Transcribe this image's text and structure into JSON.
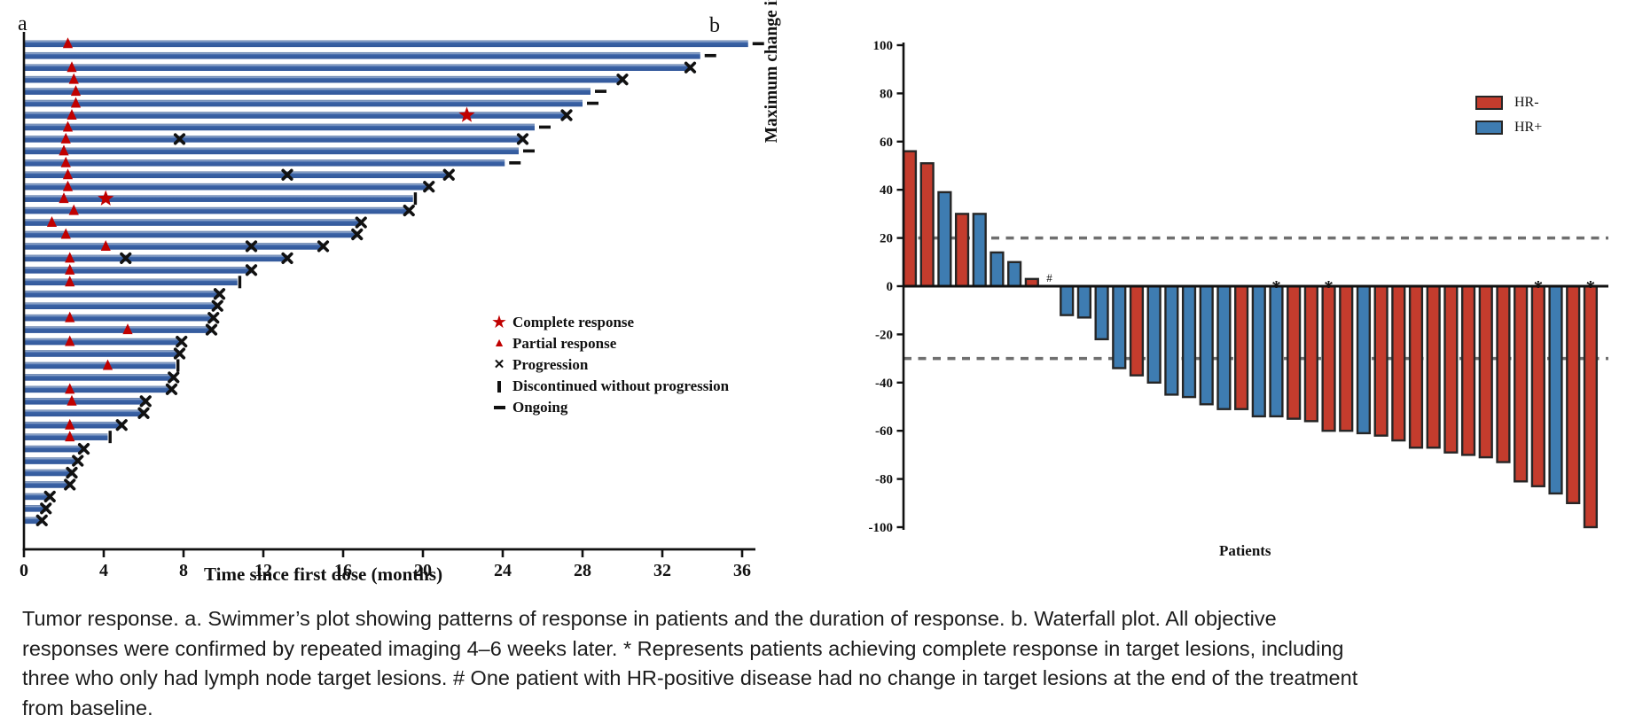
{
  "figure": {
    "panel_a_label": "a",
    "panel_b_label": "b"
  },
  "chart_data": [
    {
      "type": "swimmer",
      "panel": "a",
      "xlabel": "Time since first dose (months)",
      "x_ticks": [
        0,
        4,
        8,
        12,
        16,
        20,
        24,
        28,
        32,
        36
      ],
      "xlim": [
        0,
        37.5
      ],
      "grid": false,
      "legend_position": "center-right",
      "legend": [
        {
          "symbol": "star",
          "label": "Complete response"
        },
        {
          "symbol": "triangle",
          "label": "Partial response"
        },
        {
          "symbol": "x",
          "label": "Progression"
        },
        {
          "symbol": "vbar",
          "label": "Discontinued without progression"
        },
        {
          "symbol": "dash",
          "label": "Ongoing"
        }
      ],
      "bar_color": "#3a62a5",
      "bars": [
        {
          "length": 36.3,
          "partial_response": 2.2,
          "complete_response": null,
          "mid_progression": [],
          "end": "ongoing"
        },
        {
          "length": 33.9,
          "partial_response": null,
          "complete_response": null,
          "mid_progression": [],
          "end": "ongoing"
        },
        {
          "length": 33.4,
          "partial_response": 2.4,
          "complete_response": null,
          "mid_progression": [],
          "end": "progression"
        },
        {
          "length": 30.0,
          "partial_response": 2.5,
          "complete_response": null,
          "mid_progression": [],
          "end": "progression"
        },
        {
          "length": 28.4,
          "partial_response": 2.6,
          "complete_response": null,
          "mid_progression": [],
          "end": "ongoing"
        },
        {
          "length": 28.0,
          "partial_response": 2.6,
          "complete_response": null,
          "mid_progression": [],
          "end": "ongoing"
        },
        {
          "length": 27.2,
          "partial_response": 2.4,
          "complete_response": 22.2,
          "mid_progression": [],
          "end": "progression"
        },
        {
          "length": 25.6,
          "partial_response": 2.2,
          "complete_response": null,
          "mid_progression": [],
          "end": "ongoing"
        },
        {
          "length": 25.0,
          "partial_response": 2.1,
          "complete_response": null,
          "mid_progression": [
            7.8
          ],
          "end": "progression"
        },
        {
          "length": 24.8,
          "partial_response": 2.0,
          "complete_response": null,
          "mid_progression": [],
          "end": "ongoing"
        },
        {
          "length": 24.1,
          "partial_response": 2.1,
          "complete_response": null,
          "mid_progression": [],
          "end": "ongoing"
        },
        {
          "length": 21.3,
          "partial_response": 2.2,
          "complete_response": null,
          "mid_progression": [
            13.2
          ],
          "end": "progression"
        },
        {
          "length": 20.3,
          "partial_response": 2.2,
          "complete_response": null,
          "mid_progression": [],
          "end": "progression"
        },
        {
          "length": 19.5,
          "partial_response": 2.0,
          "complete_response": 4.1,
          "mid_progression": [],
          "end": "discontinued"
        },
        {
          "length": 19.3,
          "partial_response": 2.5,
          "complete_response": null,
          "mid_progression": [],
          "end": "progression"
        },
        {
          "length": 16.9,
          "partial_response": 1.4,
          "complete_response": null,
          "mid_progression": [],
          "end": "progression"
        },
        {
          "length": 16.7,
          "partial_response": 2.1,
          "complete_response": null,
          "mid_progression": [],
          "end": "progression"
        },
        {
          "length": 15.0,
          "partial_response": 4.1,
          "complete_response": null,
          "mid_progression": [
            11.4
          ],
          "end": "progression"
        },
        {
          "length": 13.2,
          "partial_response": 2.3,
          "complete_response": null,
          "mid_progression": [
            5.1
          ],
          "end": "progression"
        },
        {
          "length": 11.4,
          "partial_response": 2.3,
          "complete_response": null,
          "mid_progression": [],
          "end": "progression"
        },
        {
          "length": 10.7,
          "partial_response": 2.3,
          "complete_response": null,
          "mid_progression": [],
          "end": "discontinued"
        },
        {
          "length": 9.8,
          "partial_response": null,
          "complete_response": null,
          "mid_progression": [],
          "end": "progression"
        },
        {
          "length": 9.7,
          "partial_response": null,
          "complete_response": null,
          "mid_progression": [],
          "end": "progression"
        },
        {
          "length": 9.5,
          "partial_response": 2.3,
          "complete_response": null,
          "mid_progression": [],
          "end": "progression"
        },
        {
          "length": 9.4,
          "partial_response": 5.2,
          "complete_response": null,
          "mid_progression": [],
          "end": "progression"
        },
        {
          "length": 7.9,
          "partial_response": 2.3,
          "complete_response": null,
          "mid_progression": [],
          "end": "progression"
        },
        {
          "length": 7.8,
          "partial_response": null,
          "complete_response": null,
          "mid_progression": [],
          "end": "progression"
        },
        {
          "length": 7.6,
          "partial_response": 4.2,
          "complete_response": null,
          "mid_progression": [],
          "end": "discontinued"
        },
        {
          "length": 7.5,
          "partial_response": null,
          "complete_response": null,
          "mid_progression": [],
          "end": "progression"
        },
        {
          "length": 7.4,
          "partial_response": 2.3,
          "complete_response": null,
          "mid_progression": [],
          "end": "progression"
        },
        {
          "length": 6.1,
          "partial_response": 2.4,
          "complete_response": null,
          "mid_progression": [],
          "end": "progression"
        },
        {
          "length": 6.0,
          "partial_response": null,
          "complete_response": null,
          "mid_progression": [],
          "end": "progression"
        },
        {
          "length": 4.9,
          "partial_response": 2.3,
          "complete_response": null,
          "mid_progression": [],
          "end": "progression"
        },
        {
          "length": 4.2,
          "partial_response": 2.3,
          "complete_response": null,
          "mid_progression": [],
          "end": "discontinued"
        },
        {
          "length": 3.0,
          "partial_response": null,
          "complete_response": null,
          "mid_progression": [],
          "end": "progression"
        },
        {
          "length": 2.7,
          "partial_response": null,
          "complete_response": null,
          "mid_progression": [],
          "end": "progression"
        },
        {
          "length": 2.4,
          "partial_response": null,
          "complete_response": null,
          "mid_progression": [],
          "end": "progression"
        },
        {
          "length": 2.3,
          "partial_response": null,
          "complete_response": null,
          "mid_progression": [],
          "end": "progression"
        },
        {
          "length": 1.3,
          "partial_response": null,
          "complete_response": null,
          "mid_progression": [],
          "end": "progression"
        },
        {
          "length": 1.1,
          "partial_response": null,
          "complete_response": null,
          "mid_progression": [],
          "end": "progression"
        },
        {
          "length": 0.9,
          "partial_response": null,
          "complete_response": null,
          "mid_progression": [],
          "end": "progression"
        }
      ]
    },
    {
      "type": "waterfall",
      "panel": "b",
      "ylabel": "Maximum change in target lesions (%)",
      "xlabel": "Patients",
      "ylim": [
        -100,
        100
      ],
      "y_ticks": [
        100,
        80,
        60,
        40,
        20,
        0,
        -20,
        -40,
        -60,
        -80,
        -100
      ],
      "reference_lines": [
        20,
        -30
      ],
      "grid": false,
      "legend_position": "top-right",
      "legend": [
        {
          "label": "HR-",
          "color": "#c43c2d"
        },
        {
          "label": "HR+",
          "color": "#3e7cb1"
        }
      ],
      "patients": [
        {
          "value": 56,
          "group": "HR-",
          "mark": null
        },
        {
          "value": 51,
          "group": "HR-",
          "mark": null
        },
        {
          "value": 39,
          "group": "HR+",
          "mark": null
        },
        {
          "value": 30,
          "group": "HR-",
          "mark": null
        },
        {
          "value": 30,
          "group": "HR+",
          "mark": null
        },
        {
          "value": 14,
          "group": "HR+",
          "mark": null
        },
        {
          "value": 10,
          "group": "HR+",
          "mark": null
        },
        {
          "value": 3,
          "group": "HR-",
          "mark": null
        },
        {
          "value": 0,
          "group": "HR+",
          "mark": "#"
        },
        {
          "value": -12,
          "group": "HR+",
          "mark": null
        },
        {
          "value": -13,
          "group": "HR+",
          "mark": null
        },
        {
          "value": -22,
          "group": "HR+",
          "mark": null
        },
        {
          "value": -34,
          "group": "HR+",
          "mark": null
        },
        {
          "value": -37,
          "group": "HR-",
          "mark": null
        },
        {
          "value": -40,
          "group": "HR+",
          "mark": null
        },
        {
          "value": -45,
          "group": "HR+",
          "mark": null
        },
        {
          "value": -46,
          "group": "HR+",
          "mark": null
        },
        {
          "value": -49,
          "group": "HR+",
          "mark": null
        },
        {
          "value": -51,
          "group": "HR+",
          "mark": null
        },
        {
          "value": -51,
          "group": "HR-",
          "mark": null
        },
        {
          "value": -54,
          "group": "HR+",
          "mark": null
        },
        {
          "value": -54,
          "group": "HR+",
          "mark": "*"
        },
        {
          "value": -55,
          "group": "HR-",
          "mark": null
        },
        {
          "value": -56,
          "group": "HR-",
          "mark": null
        },
        {
          "value": -60,
          "group": "HR-",
          "mark": "*"
        },
        {
          "value": -60,
          "group": "HR-",
          "mark": null
        },
        {
          "value": -61,
          "group": "HR+",
          "mark": null
        },
        {
          "value": -62,
          "group": "HR-",
          "mark": null
        },
        {
          "value": -64,
          "group": "HR-",
          "mark": null
        },
        {
          "value": -67,
          "group": "HR-",
          "mark": null
        },
        {
          "value": -67,
          "group": "HR-",
          "mark": null
        },
        {
          "value": -69,
          "group": "HR-",
          "mark": null
        },
        {
          "value": -70,
          "group": "HR-",
          "mark": null
        },
        {
          "value": -71,
          "group": "HR-",
          "mark": null
        },
        {
          "value": -73,
          "group": "HR-",
          "mark": null
        },
        {
          "value": -81,
          "group": "HR-",
          "mark": null
        },
        {
          "value": -83,
          "group": "HR-",
          "mark": "*"
        },
        {
          "value": -86,
          "group": "HR+",
          "mark": null
        },
        {
          "value": -90,
          "group": "HR-",
          "mark": null
        },
        {
          "value": -100,
          "group": "HR-",
          "mark": "*"
        }
      ]
    }
  ],
  "colors": {
    "swimmer_bar": "#3a62a5",
    "swimmer_bar_highlight": "#93aacf",
    "marker_red": "#c00000",
    "marker_black": "#111111",
    "hr_negative": "#c43c2d",
    "hr_positive": "#3e7cb1",
    "bar_border": "#262626",
    "dashed_reference": "#6f6f6f"
  },
  "caption": {
    "text": "Tumor response. a. Swimmer’s plot showing patterns of response in patients and the duration of response. b. Waterfall plot. All objective responses were confirmed by repeated imaging 4–6 weeks later. * Represents patients achieving complete response in target lesions, including three who only had lymph node target lesions. # One patient with HR-positive disease had no change in target lesions at the end of the treatment from baseline."
  }
}
